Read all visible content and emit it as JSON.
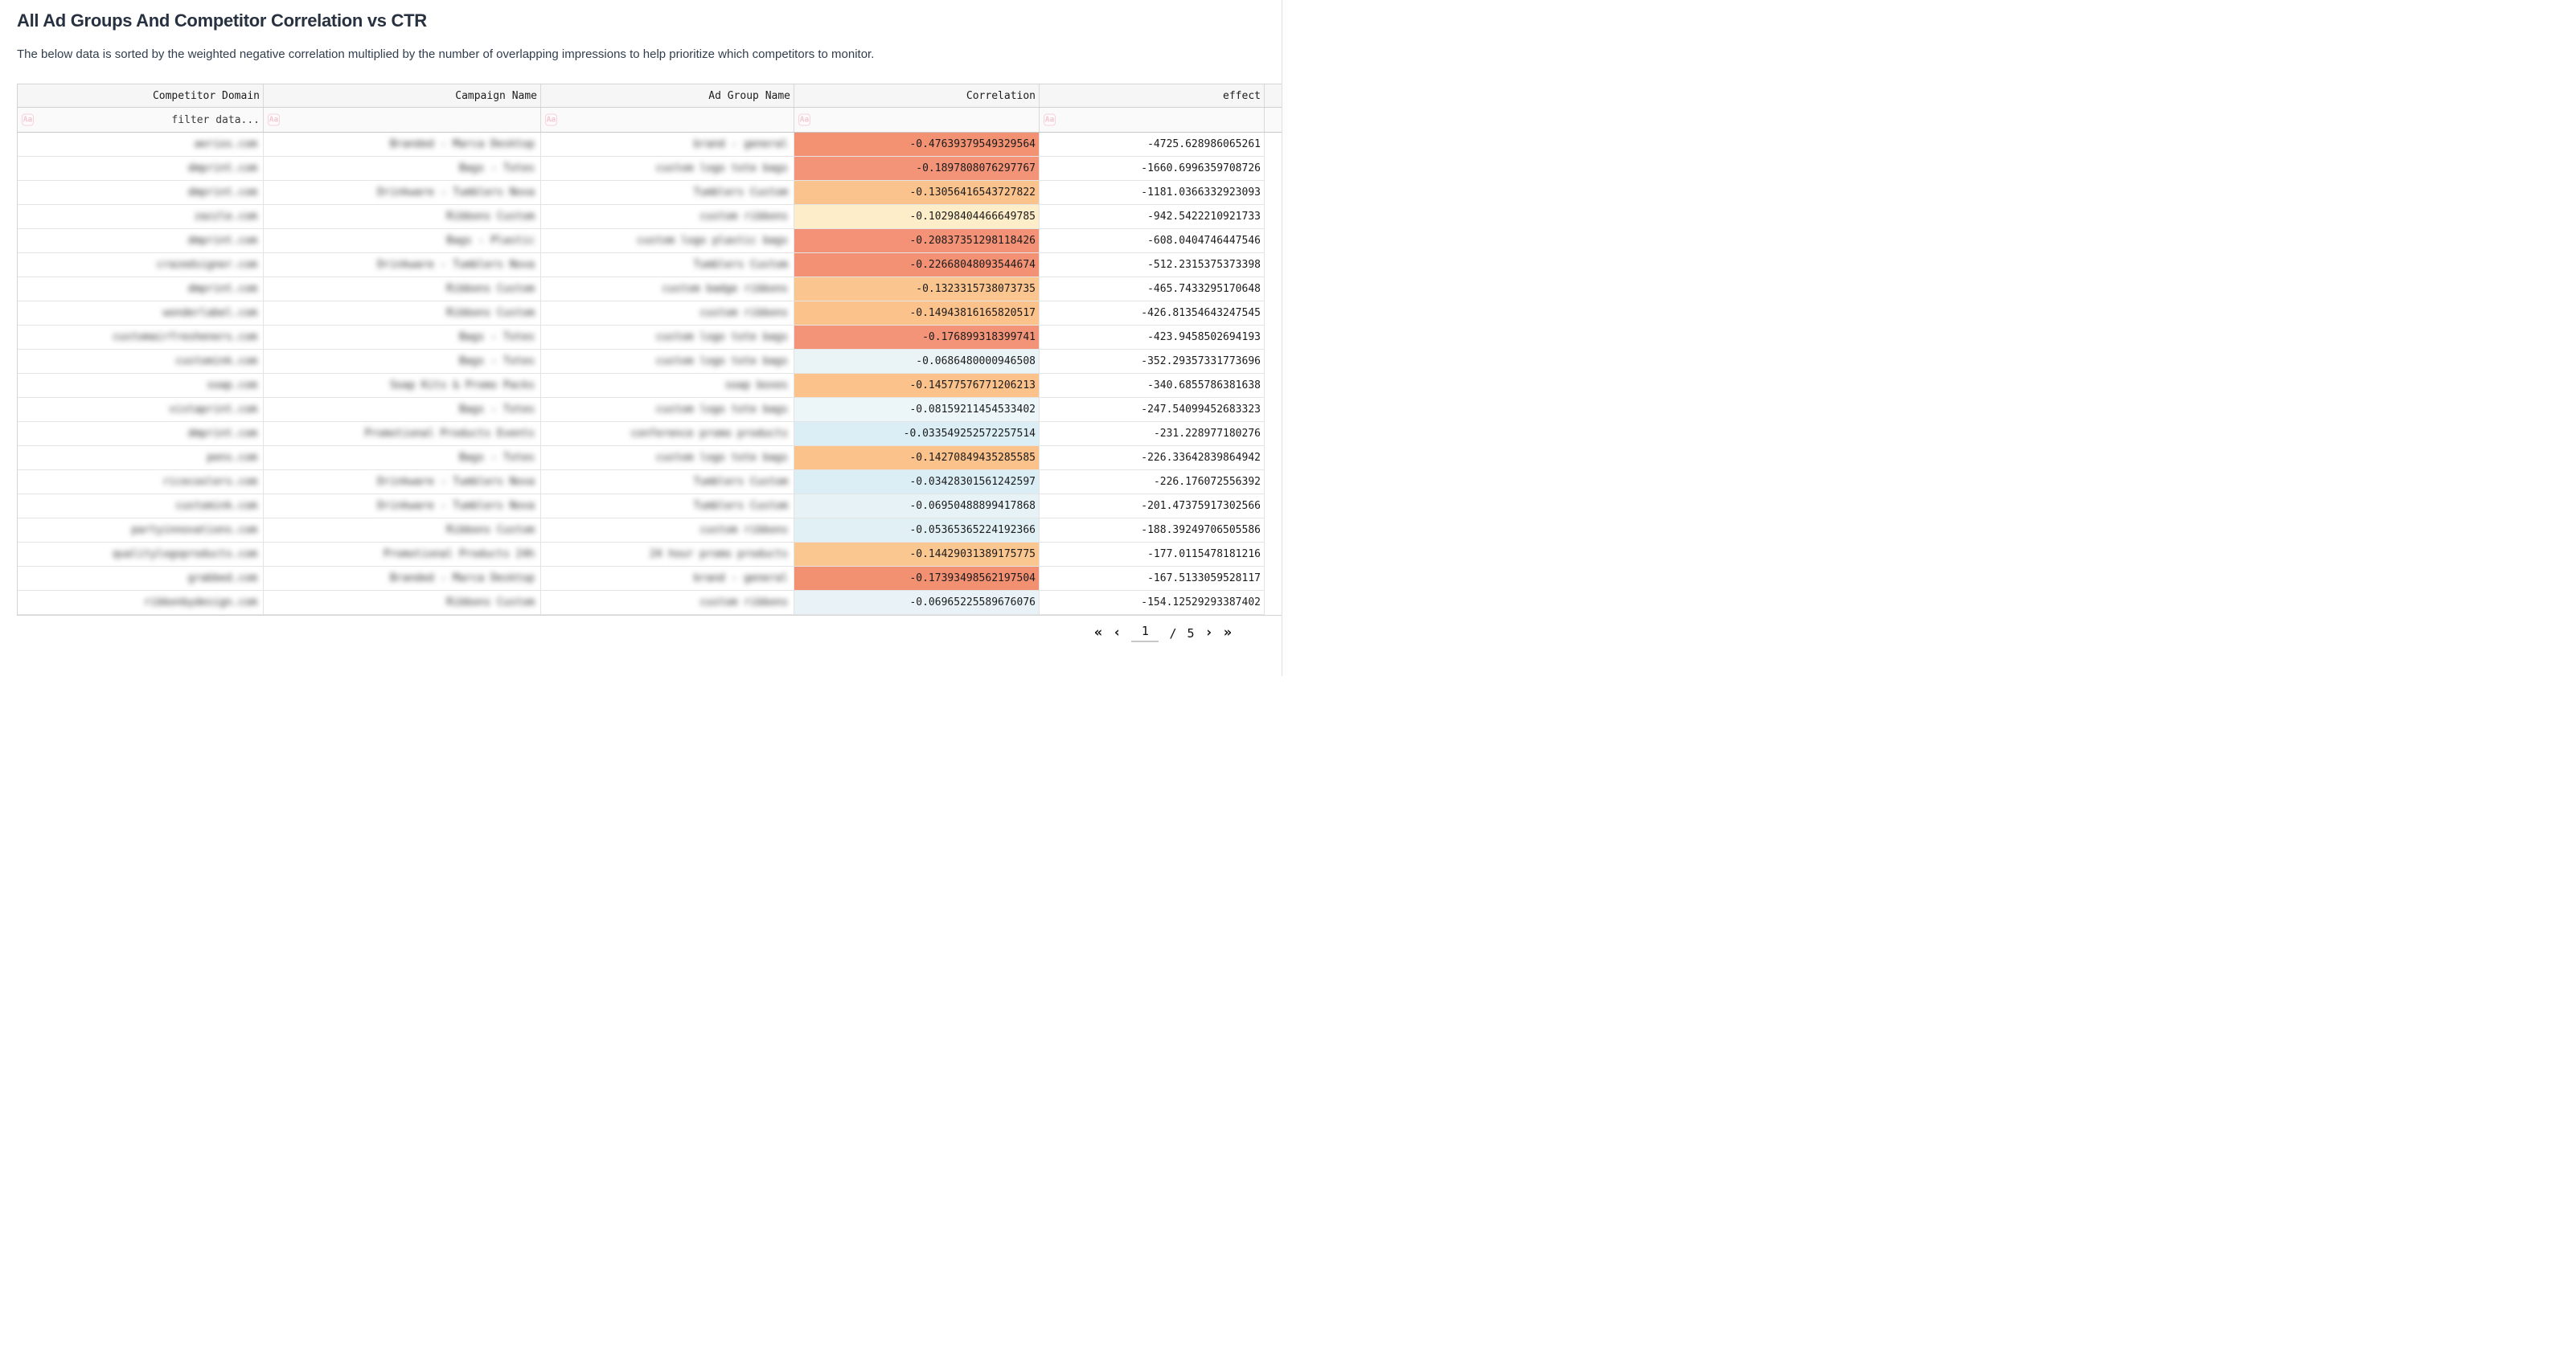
{
  "page": {
    "title": "All Ad Groups And Competitor Correlation vs CTR",
    "subtitle": "The below data is sorted by the weighted negative correlation multiplied by the number of overlapping impressions to help prioritize which competitors to monitor."
  },
  "table": {
    "filter_icon": "Aa",
    "columns": [
      {
        "label": "Competitor Domain",
        "filter_placeholder": "filter data..."
      },
      {
        "label": "Campaign Name",
        "filter_placeholder": ""
      },
      {
        "label": "Ad Group Name",
        "filter_placeholder": ""
      },
      {
        "label": "Correlation",
        "filter_placeholder": ""
      },
      {
        "label": "effect",
        "filter_placeholder": ""
      }
    ],
    "rows": [
      {
        "competitor_domain": "aerios.com",
        "campaign_name": "Branded - Marca Desktop",
        "ad_group_name": "brand - general",
        "correlation": "-0.47639379549329564",
        "effect": "-4725.628986065261",
        "correlation_bg": "#f29272"
      },
      {
        "competitor_domain": "dmprint.com",
        "campaign_name": "Bags - Totes",
        "ad_group_name": "custom logo tote bags",
        "correlation": "-0.1897808076297767",
        "effect": "-1660.6996359708726",
        "correlation_bg": "#f39478"
      },
      {
        "competitor_domain": "dmprint.com",
        "campaign_name": "Drinkware - Tumblers Nova",
        "ad_group_name": "Tumblers Custom",
        "correlation": "-0.13056416543727822",
        "effect": "-1181.0366332923093",
        "correlation_bg": "#fac28c"
      },
      {
        "competitor_domain": "zazzle.com",
        "campaign_name": "Ribbons Custom",
        "ad_group_name": "custom ribbons",
        "correlation": "-0.10298404466649785",
        "effect": "-942.5422210921733",
        "correlation_bg": "#fdedc8"
      },
      {
        "competitor_domain": "dmprint.com",
        "campaign_name": "Bags - Plastic",
        "ad_group_name": "custom logo plastic bags",
        "correlation": "-0.20837351298118426",
        "effect": "-608.0404746447546",
        "correlation_bg": "#f39276"
      },
      {
        "competitor_domain": "crazedsigner.com",
        "campaign_name": "Drinkware - Tumblers Nova",
        "ad_group_name": "Tumblers Custom",
        "correlation": "-0.22668048093544674",
        "effect": "-512.2315375373398",
        "correlation_bg": "#f39175"
      },
      {
        "competitor_domain": "dmprint.com",
        "campaign_name": "Ribbons Custom",
        "ad_group_name": "custom badge ribbons",
        "correlation": "-0.1323315738073735",
        "effect": "-465.7433295170648",
        "correlation_bg": "#fbc58f"
      },
      {
        "competitor_domain": "wonderlabel.com",
        "campaign_name": "Ribbons Custom",
        "ad_group_name": "custom ribbons",
        "correlation": "-0.14943816165820517",
        "effect": "-426.81354643247545",
        "correlation_bg": "#fbc28b"
      },
      {
        "competitor_domain": "customairfresheners.com",
        "campaign_name": "Bags - Totes",
        "ad_group_name": "custom logo tote bags",
        "correlation": "-0.176899318399741",
        "effect": "-423.9458502694193",
        "correlation_bg": "#f39478"
      },
      {
        "competitor_domain": "customink.com",
        "campaign_name": "Bags - Totes",
        "ad_group_name": "custom logo tote bags",
        "correlation": "-0.0686480000946508",
        "effect": "-352.29357331773696",
        "correlation_bg": "#eaf4f7"
      },
      {
        "competitor_domain": "soap.com",
        "campaign_name": "Soap Kits & Promo Packs",
        "ad_group_name": "soap boxes",
        "correlation": "-0.14577576771206213",
        "effect": "-340.6855786381638",
        "correlation_bg": "#fbc28b"
      },
      {
        "competitor_domain": "vistaprint.com",
        "campaign_name": "Bags - Totes",
        "ad_group_name": "custom logo tote bags",
        "correlation": "-0.08159211454533402",
        "effect": "-247.54099452683323",
        "correlation_bg": "#ecf5f8"
      },
      {
        "competitor_domain": "dmprint.com",
        "campaign_name": "Promotional Products Events",
        "ad_group_name": "conference promo products",
        "correlation": "-0.033549252572257514",
        "effect": "-231.228977180276",
        "correlation_bg": "#dceef5"
      },
      {
        "competitor_domain": "pens.com",
        "campaign_name": "Bags - Totes",
        "ad_group_name": "custom logo tote bags",
        "correlation": "-0.14270849435285585",
        "effect": "-226.33642839864942",
        "correlation_bg": "#fbc28b"
      },
      {
        "competitor_domain": "ricecoolers.com",
        "campaign_name": "Drinkware - Tumblers Nova",
        "ad_group_name": "Tumblers Custom",
        "correlation": "-0.03428301561242597",
        "effect": "-226.176072556392",
        "correlation_bg": "#dceef5"
      },
      {
        "competitor_domain": "customink.com",
        "campaign_name": "Drinkware - Tumblers Nova",
        "ad_group_name": "Tumblers Custom",
        "correlation": "-0.06950488899417868",
        "effect": "-201.47375917302566",
        "correlation_bg": "#e7f2f6"
      },
      {
        "competitor_domain": "partyinnovations.com",
        "campaign_name": "Ribbons Custom",
        "ad_group_name": "custom ribbons",
        "correlation": "-0.05365365224192366",
        "effect": "-188.39249706505586",
        "correlation_bg": "#e0f0f5"
      },
      {
        "competitor_domain": "qualitylogoproducts.com",
        "campaign_name": "Promotional Products 24h",
        "ad_group_name": "24 hour promo products",
        "correlation": "-0.14429031389175775",
        "effect": "-177.0115478181216",
        "correlation_bg": "#fbc791"
      },
      {
        "competitor_domain": "grabbed.com",
        "campaign_name": "Branded - Marca Desktop",
        "ad_group_name": "brand - general",
        "correlation": "-0.17393498562197504",
        "effect": "-167.5133059528117",
        "correlation_bg": "#f29072"
      },
      {
        "competitor_domain": "ribbonbydesign.com",
        "campaign_name": "Ribbons Custom",
        "ad_group_name": "custom ribbons",
        "correlation": "-0.06965225589676076",
        "effect": "-154.12529293387402",
        "correlation_bg": "#e9f3f7"
      }
    ]
  },
  "pagination": {
    "first_icon": "«",
    "prev_icon": "‹",
    "current_page": "1",
    "separator": "/",
    "total_pages": "5",
    "next_icon": "›",
    "last_icon": "»"
  },
  "colors": {
    "title_text": "#273140",
    "header_bg": "#f6f6f6",
    "filter_icon_pink": "#f0c9d4",
    "grid_border": "#d4d4d4"
  }
}
